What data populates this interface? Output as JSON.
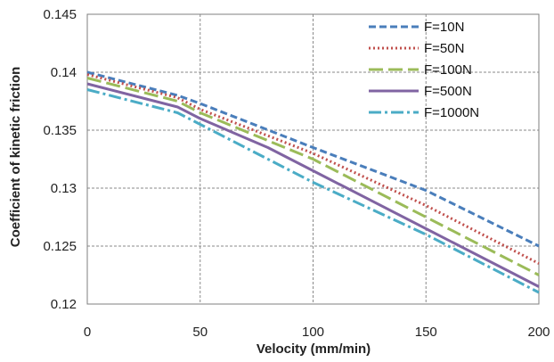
{
  "chart_data": {
    "type": "line",
    "title": "",
    "xlabel": "Velocity (mm/min)",
    "ylabel": "Coefficient of kinetic friction",
    "xlim": [
      0,
      200
    ],
    "ylim": [
      0.12,
      0.145
    ],
    "x_ticks": [
      "0",
      "50",
      "100",
      "150",
      "200"
    ],
    "y_ticks": [
      "0.12",
      "0.125",
      "0.13",
      "0.135",
      "0.14",
      "0.145"
    ],
    "grid": true,
    "legend_position": "top-right",
    "series": [
      {
        "name": "F=10N",
        "color": "#4a7ebb",
        "dash": "dashed",
        "x": [
          0,
          40,
          50,
          100,
          150,
          200
        ],
        "y": [
          0.14,
          0.138,
          0.1373,
          0.1335,
          0.1298,
          0.125
        ]
      },
      {
        "name": "F=50N",
        "color": "#c0504d",
        "dash": "dotted",
        "x": [
          0,
          40,
          50,
          100,
          150,
          200
        ],
        "y": [
          0.1398,
          0.1378,
          0.1368,
          0.133,
          0.1285,
          0.1235
        ]
      },
      {
        "name": "F=100N",
        "color": "#9bbb59",
        "dash": "long-dash",
        "x": [
          0,
          40,
          50,
          100,
          150,
          200
        ],
        "y": [
          0.1395,
          0.1375,
          0.1365,
          0.1325,
          0.1275,
          0.1225
        ]
      },
      {
        "name": "F=500N",
        "color": "#8064a2",
        "dash": "solid",
        "x": [
          0,
          40,
          50,
          80,
          100,
          150,
          200
        ],
        "y": [
          0.139,
          0.137,
          0.136,
          0.1335,
          0.1315,
          0.1265,
          0.1215
        ]
      },
      {
        "name": "F=1000N",
        "color": "#4bacc6",
        "dash": "dash-dot",
        "x": [
          0,
          40,
          50,
          100,
          150,
          200
        ],
        "y": [
          0.1385,
          0.1365,
          0.1355,
          0.1305,
          0.126,
          0.121
        ]
      }
    ]
  }
}
